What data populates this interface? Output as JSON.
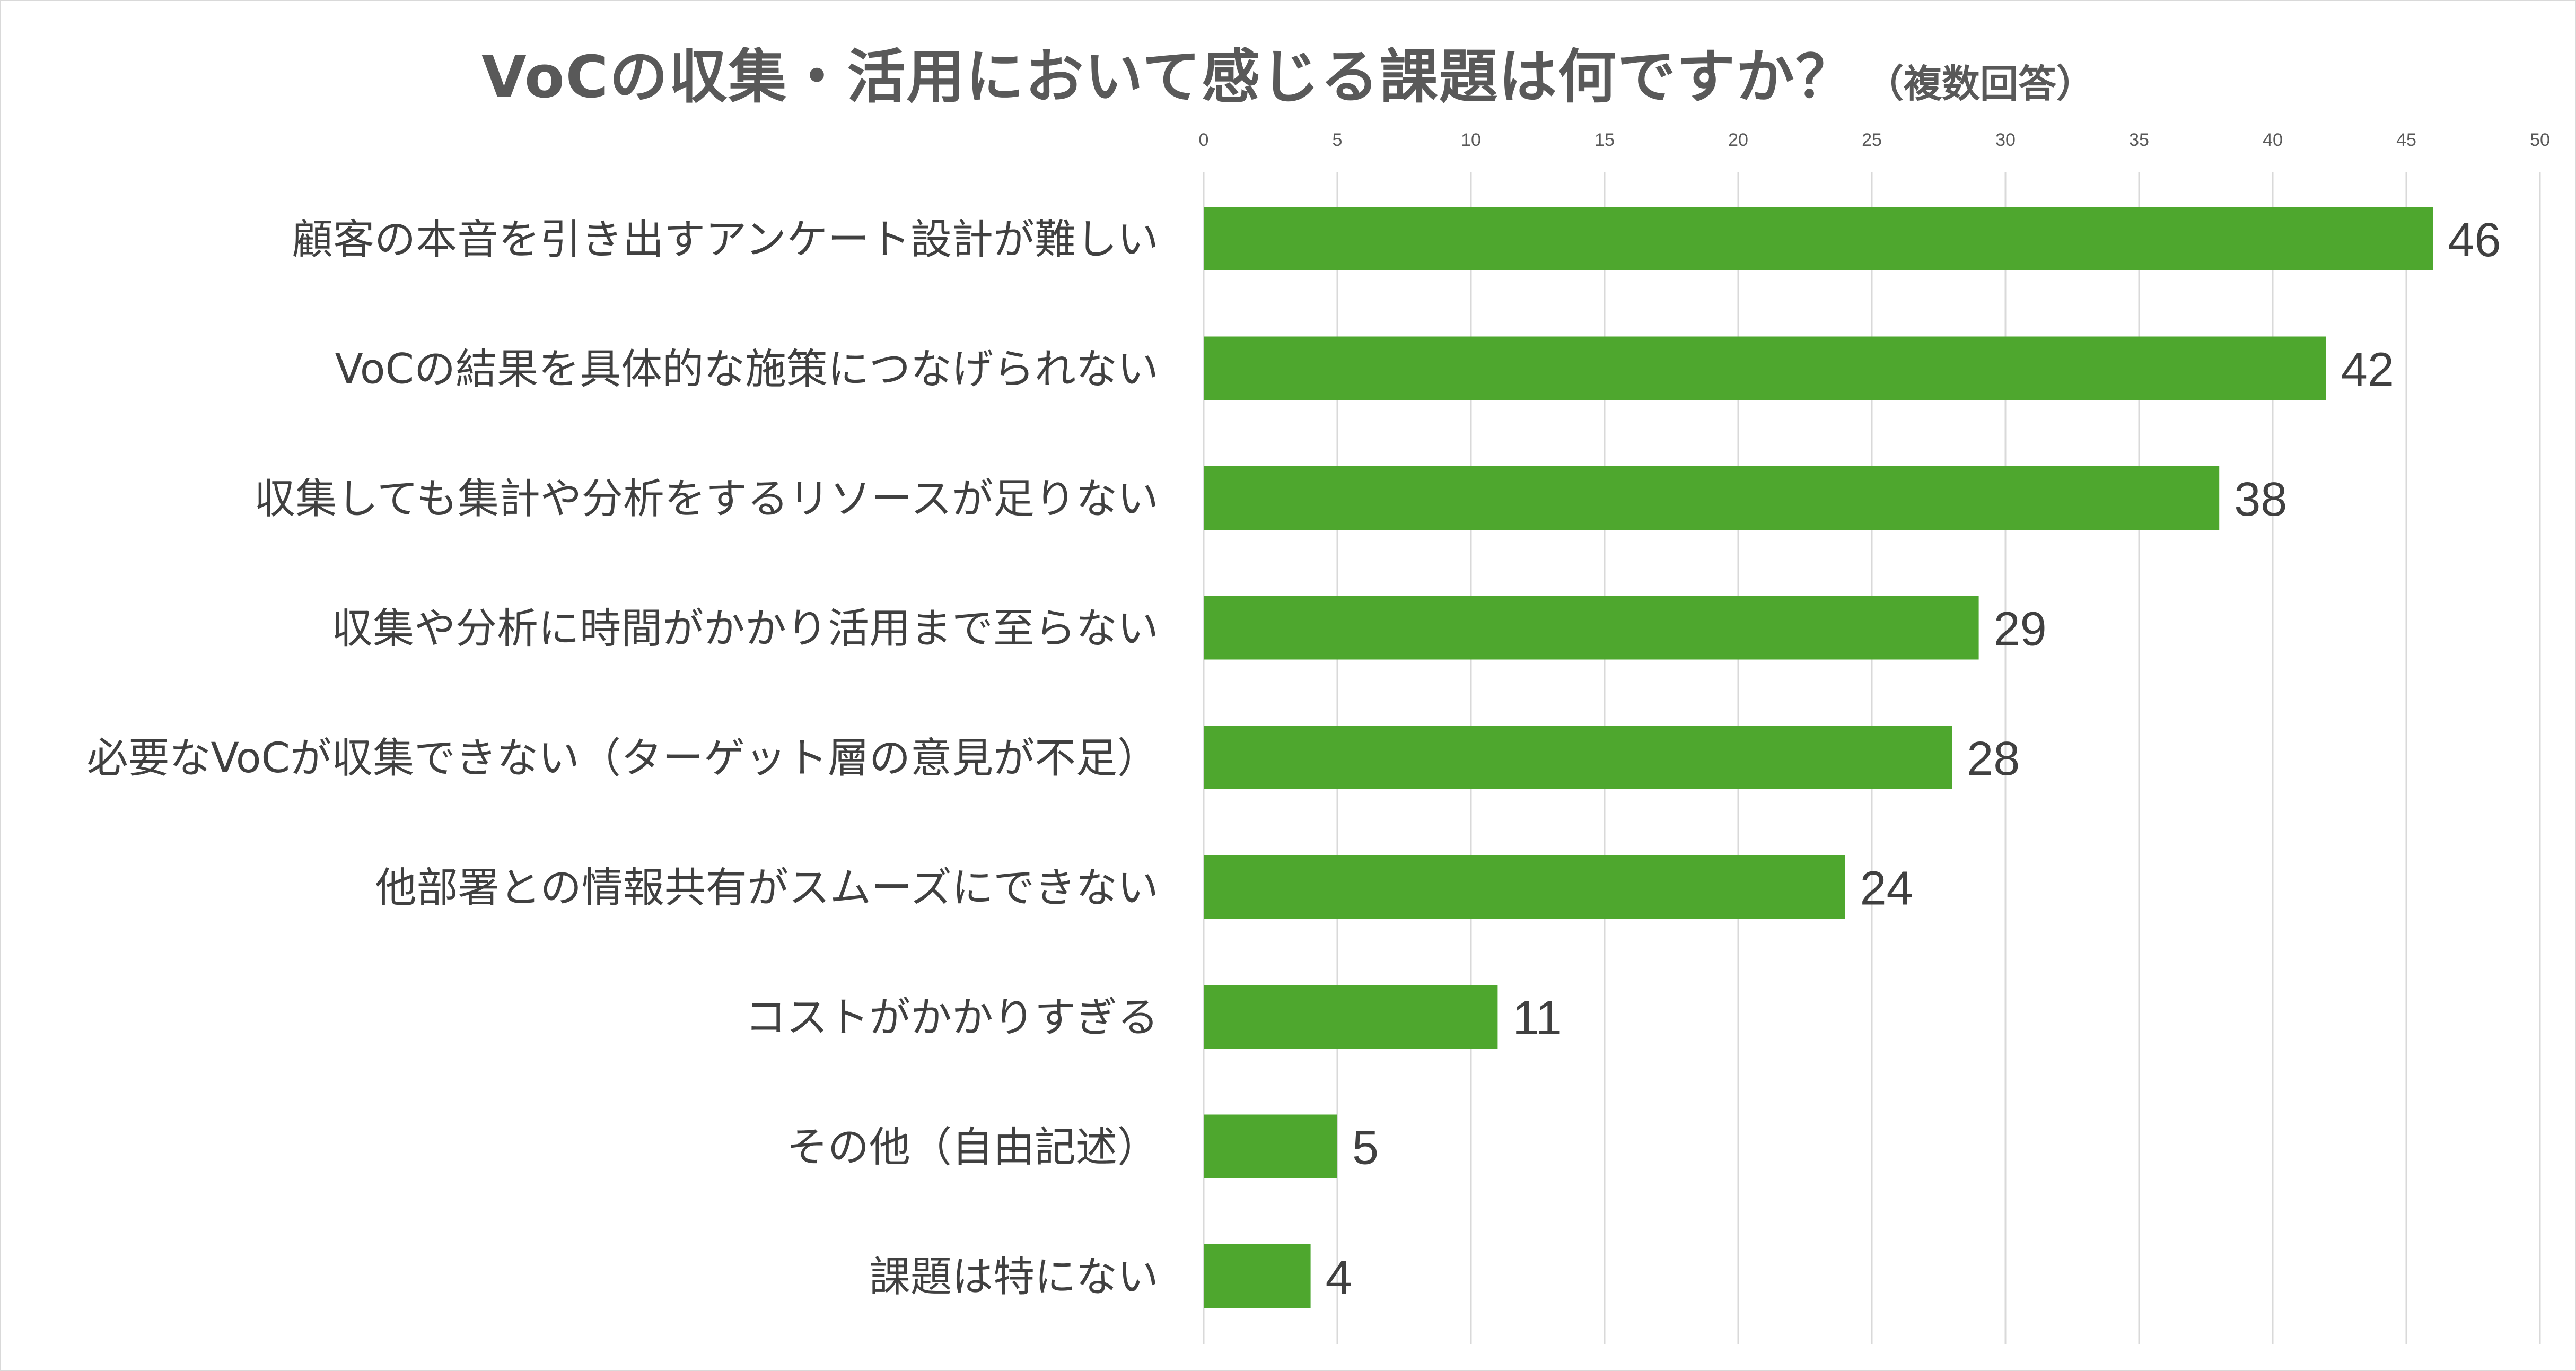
{
  "title": "VoCの収集・活用において感じる課題は何ですか？",
  "subtitle": "（複数回答）",
  "colors": {
    "bar": "#4ea72e",
    "grid": "#d9d9d9",
    "text": "#404040"
  },
  "chart_data": {
    "type": "bar",
    "orientation": "horizontal",
    "categories": [
      "顧客の本音を引き出すアンケート設計が難しい",
      "VoCの結果を具体的な施策につなげられない",
      "収集しても集計や分析をするリソースが足りない",
      "収集や分析に時間がかかり活用まで至らない",
      "必要なVoCが収集できない（ターゲット層の意見が不足）",
      "他部署との情報共有がスムーズにできない",
      "コストがかかりすぎる",
      "その他（自由記述）",
      "課題は特にない"
    ],
    "values": [
      46,
      42,
      38,
      29,
      28,
      24,
      11,
      5,
      4
    ],
    "xlim": [
      0,
      50
    ],
    "xticks": [
      0,
      5,
      10,
      15,
      20,
      25,
      30,
      35,
      40,
      45,
      50
    ],
    "x_axis_position": "top",
    "grid": true,
    "data_labels": true
  }
}
